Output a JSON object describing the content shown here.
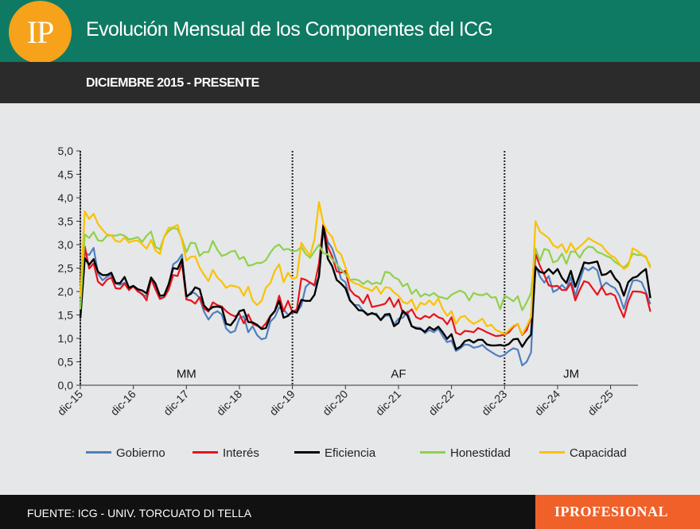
{
  "header": {
    "logo_text": "IP",
    "title": "Evolución Mensual de los Componentes del ICG",
    "subtitle": "DICIEMBRE 2015 - PRESENTE"
  },
  "footer": {
    "source": "FUENTE: ICG - UNIV. TORCUATO DI TELLA",
    "brand": "IPROFESIONAL"
  },
  "colors": {
    "header_bg": "#0f7a63",
    "logo_bg": "#f6a21a",
    "brand_bg": "#f0612a"
  },
  "chart_data": {
    "type": "line",
    "title": "",
    "ylim": [
      0,
      5
    ],
    "y_ticks": [
      "0,0",
      "0,5",
      "1,0",
      "1,5",
      "2,0",
      "2,5",
      "3,0",
      "3,5",
      "4,0",
      "4,5",
      "5,0"
    ],
    "x_tick_labels": [
      "dic-15",
      "dic-16",
      "dic-17",
      "dic-18",
      "dic-19",
      "dic-20",
      "dic-21",
      "dic-22",
      "dic-23",
      "dic-24",
      "dic-25"
    ],
    "period_labels": [
      "MM",
      "AF",
      "JM"
    ],
    "period_separators": [
      "dic-15",
      "dic-19",
      "dic-23"
    ],
    "x_start": "dic-15",
    "series": [
      {
        "name": "Gobierno",
        "color": "#4f7fbf",
        "values": [
          1.45,
          2.82,
          2.78,
          2.93,
          2.38,
          2.24,
          2.31,
          2.36,
          2.17,
          2.14,
          2.19,
          2.05,
          2.11,
          2.02,
          1.93,
          1.9,
          2.26,
          2.12,
          1.86,
          1.88,
          2.13,
          2.58,
          2.65,
          2.79,
          1.86,
          1.99,
          1.96,
          1.86,
          1.57,
          1.4,
          1.53,
          1.58,
          1.51,
          1.21,
          1.12,
          1.16,
          1.43,
          1.47,
          1.13,
          1.26,
          1.07,
          0.98,
          1.01,
          1.36,
          1.45,
          1.66,
          1.62,
          1.5,
          1.55,
          1.56,
          1.7,
          2.1,
          2.19,
          2.12,
          2.3,
          3.4,
          3.06,
          2.92,
          2.64,
          2.27,
          2.2,
          1.82,
          1.71,
          1.71,
          1.59,
          1.52,
          1.52,
          1.53,
          1.39,
          1.48,
          1.49,
          1.3,
          1.42,
          1.44,
          1.57,
          1.26,
          1.23,
          1.22,
          1.11,
          1.18,
          1.13,
          1.21,
          1.05,
          0.92,
          0.95,
          0.73,
          0.79,
          0.87,
          0.86,
          0.8,
          0.82,
          0.86,
          0.77,
          0.71,
          0.65,
          0.61,
          0.65,
          0.73,
          0.79,
          0.76,
          0.42,
          0.5,
          0.7,
          2.55,
          2.32,
          2.19,
          2.33,
          1.99,
          2.04,
          2.14,
          2.04,
          2.31,
          1.9,
          2.22,
          2.51,
          2.45,
          2.52,
          2.45,
          2.09,
          2.19,
          2.12,
          2.07,
          1.91,
          1.63,
          1.95,
          2.23,
          2.24,
          2.2,
          1.99,
          1.73
        ]
      },
      {
        "name": "Interés",
        "color": "#e8131b",
        "values": [
          1.62,
          2.96,
          2.49,
          2.6,
          2.21,
          2.13,
          2.25,
          2.3,
          2.07,
          2.06,
          2.17,
          2.03,
          2.11,
          2.0,
          1.95,
          1.81,
          2.27,
          2.05,
          1.84,
          1.88,
          2.04,
          2.35,
          2.33,
          2.6,
          1.83,
          1.81,
          1.74,
          1.88,
          1.64,
          1.57,
          1.77,
          1.71,
          1.68,
          1.58,
          1.51,
          1.47,
          1.52,
          1.32,
          1.51,
          1.31,
          1.27,
          1.22,
          1.32,
          1.48,
          1.58,
          1.91,
          1.58,
          1.8,
          1.56,
          1.62,
          2.28,
          2.25,
          2.19,
          2.14,
          2.6,
          3.45,
          2.95,
          2.75,
          2.43,
          2.4,
          2.44,
          2.04,
          1.93,
          1.88,
          1.75,
          1.93,
          1.67,
          1.69,
          1.71,
          1.74,
          1.87,
          1.67,
          1.83,
          1.53,
          1.54,
          1.62,
          1.45,
          1.41,
          1.48,
          1.44,
          1.52,
          1.45,
          1.42,
          1.3,
          1.45,
          1.12,
          1.08,
          1.16,
          1.15,
          1.13,
          1.22,
          1.18,
          1.13,
          1.09,
          1.05,
          1.06,
          1.08,
          1.13,
          1.25,
          1.31,
          1.07,
          1.18,
          1.45,
          2.8,
          2.55,
          2.35,
          2.13,
          2.11,
          2.12,
          2.03,
          2.03,
          2.18,
          1.81,
          2.03,
          2.22,
          2.19,
          2.06,
          1.93,
          2.1,
          1.93,
          1.96,
          1.91,
          1.66,
          1.45,
          1.79,
          2.0,
          2.0,
          1.99,
          1.95,
          1.57
        ]
      },
      {
        "name": "Eficiencia",
        "color": "#000000",
        "values": [
          1.43,
          2.71,
          2.57,
          2.69,
          2.42,
          2.35,
          2.35,
          2.4,
          2.18,
          2.18,
          2.31,
          2.08,
          2.12,
          2.05,
          2.02,
          1.96,
          2.3,
          2.17,
          1.91,
          1.92,
          2.16,
          2.5,
          2.48,
          2.69,
          1.9,
          1.95,
          2.09,
          2.05,
          1.7,
          1.6,
          1.67,
          1.68,
          1.66,
          1.31,
          1.28,
          1.4,
          1.58,
          1.61,
          1.35,
          1.34,
          1.29,
          1.2,
          1.22,
          1.47,
          1.58,
          1.8,
          1.44,
          1.48,
          1.58,
          1.55,
          1.82,
          1.8,
          1.8,
          1.93,
          2.33,
          3.4,
          2.7,
          2.54,
          2.25,
          2.17,
          2.07,
          1.81,
          1.71,
          1.6,
          1.59,
          1.5,
          1.54,
          1.5,
          1.39,
          1.51,
          1.52,
          1.26,
          1.33,
          1.59,
          1.49,
          1.26,
          1.21,
          1.2,
          1.14,
          1.24,
          1.18,
          1.25,
          1.13,
          0.99,
          1.09,
          0.77,
          0.82,
          0.94,
          0.97,
          0.91,
          0.97,
          0.97,
          0.87,
          0.85,
          0.85,
          0.86,
          0.84,
          0.88,
          0.98,
          0.99,
          0.82,
          0.97,
          1.08,
          2.52,
          2.42,
          2.39,
          2.48,
          2.38,
          2.48,
          2.29,
          2.18,
          2.44,
          2.1,
          2.35,
          2.62,
          2.6,
          2.62,
          2.64,
          2.35,
          2.37,
          2.44,
          2.28,
          2.18,
          1.91,
          2.2,
          2.29,
          2.32,
          2.41,
          2.48,
          1.86
        ]
      },
      {
        "name": "Honestidad",
        "color": "#8ed14c",
        "values": [
          1.62,
          3.22,
          3.14,
          3.27,
          3.09,
          3.08,
          3.19,
          3.2,
          3.19,
          3.22,
          3.19,
          3.11,
          3.13,
          3.16,
          3.06,
          3.19,
          3.28,
          2.95,
          2.9,
          3.17,
          3.29,
          3.36,
          3.33,
          3.13,
          2.84,
          3.04,
          3.03,
          2.76,
          2.84,
          2.84,
          3.08,
          2.89,
          2.76,
          2.79,
          2.85,
          2.87,
          2.69,
          2.74,
          2.55,
          2.57,
          2.61,
          2.61,
          2.67,
          2.83,
          2.95,
          3.0,
          2.89,
          2.91,
          2.86,
          2.87,
          2.95,
          2.8,
          2.72,
          2.86,
          3.0,
          2.82,
          2.79,
          2.69,
          2.59,
          2.47,
          2.37,
          2.25,
          2.26,
          2.24,
          2.16,
          2.23,
          2.16,
          2.19,
          2.16,
          2.42,
          2.4,
          2.3,
          2.26,
          2.11,
          2.17,
          1.95,
          2.04,
          1.89,
          1.95,
          1.91,
          1.97,
          1.89,
          1.87,
          1.84,
          1.93,
          1.98,
          2.02,
          1.97,
          1.81,
          1.97,
          1.93,
          1.92,
          1.96,
          1.87,
          1.88,
          1.62,
          1.91,
          1.86,
          1.79,
          1.9,
          1.6,
          1.77,
          1.97,
          2.92,
          2.66,
          2.91,
          2.88,
          2.62,
          2.66,
          2.81,
          2.59,
          2.85,
          2.85,
          2.72,
          2.88,
          2.96,
          2.94,
          2.84,
          2.81,
          2.76,
          2.72,
          2.63,
          2.57,
          2.51,
          2.6,
          2.81,
          2.78,
          2.78,
          2.73,
          2.54
        ]
      },
      {
        "name": "Capacidad",
        "color": "#f9c200",
        "values": [
          1.9,
          3.71,
          3.55,
          3.66,
          3.44,
          3.32,
          3.22,
          3.2,
          3.08,
          3.06,
          3.15,
          3.05,
          3.08,
          3.09,
          3.01,
          2.91,
          3.1,
          2.88,
          2.8,
          3.17,
          3.36,
          3.37,
          3.42,
          3.09,
          2.66,
          2.74,
          2.75,
          2.51,
          2.36,
          2.22,
          2.46,
          2.3,
          2.21,
          2.08,
          2.13,
          2.11,
          2.08,
          1.91,
          2.1,
          1.81,
          1.71,
          1.8,
          2.08,
          2.18,
          2.44,
          2.58,
          2.2,
          2.4,
          2.27,
          2.3,
          3.04,
          2.89,
          2.77,
          3.12,
          3.91,
          3.45,
          3.27,
          3.16,
          2.88,
          2.79,
          2.52,
          2.24,
          2.18,
          2.15,
          2.09,
          2.06,
          2.01,
          2.11,
          1.95,
          2.09,
          2.08,
          1.98,
          1.91,
          1.78,
          1.74,
          1.83,
          1.6,
          1.76,
          1.72,
          1.81,
          1.71,
          1.85,
          1.63,
          1.48,
          1.58,
          1.31,
          1.45,
          1.48,
          1.38,
          1.31,
          1.36,
          1.42,
          1.26,
          1.29,
          1.18,
          1.14,
          1.09,
          1.18,
          1.27,
          1.31,
          1.08,
          1.26,
          1.45,
          3.5,
          3.28,
          3.21,
          3.14,
          2.99,
          2.93,
          3.01,
          2.82,
          3.03,
          2.88,
          2.96,
          3.04,
          3.14,
          3.08,
          3.03,
          2.98,
          2.86,
          2.77,
          2.72,
          2.59,
          2.48,
          2.55,
          2.92,
          2.87,
          2.79,
          2.75,
          2.5
        ]
      }
    ],
    "legend_position": "bottom"
  }
}
